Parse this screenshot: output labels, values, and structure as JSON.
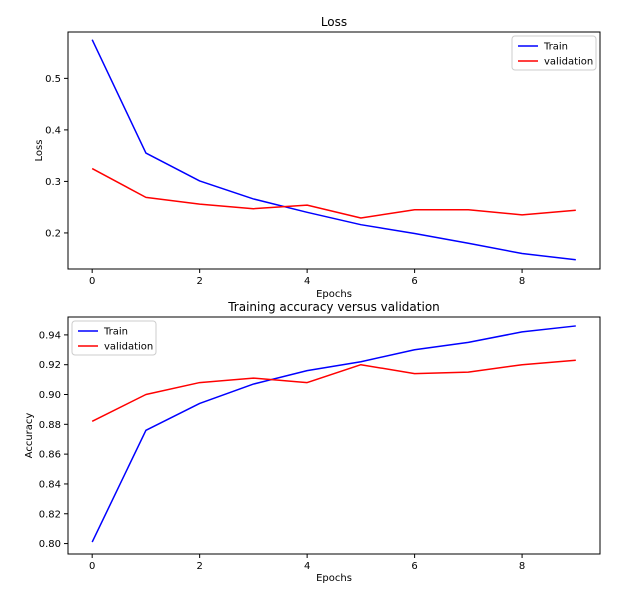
{
  "chart_data": [
    {
      "type": "line",
      "title": "Loss",
      "xlabel": "Epochs",
      "ylabel": "Loss",
      "xlim": [
        -0.45,
        9.45
      ],
      "ylim": [
        0.13,
        0.59
      ],
      "xticks": [
        0,
        2,
        4,
        6,
        8
      ],
      "xtick_labels": [
        "0",
        "2",
        "4",
        "6",
        "8"
      ],
      "yticks": [
        0.2,
        0.3,
        0.4,
        0.5
      ],
      "ytick_labels": [
        "0.2",
        "0.3",
        "0.4",
        "0.5"
      ],
      "legend_position": "top-right",
      "x": [
        0,
        1,
        2,
        3,
        4,
        5,
        6,
        7,
        8,
        9
      ],
      "series": [
        {
          "name": "Train",
          "color": "#0000ff",
          "values": [
            0.575,
            0.355,
            0.301,
            0.266,
            0.24,
            0.216,
            0.199,
            0.18,
            0.16,
            0.148
          ]
        },
        {
          "name": "validation",
          "color": "#ff0000",
          "values": [
            0.325,
            0.269,
            0.256,
            0.247,
            0.254,
            0.229,
            0.245,
            0.245,
            0.235,
            0.244
          ]
        }
      ]
    },
    {
      "type": "line",
      "title": "Training accuracy versus validation",
      "xlabel": "Epochs",
      "ylabel": "Accuracy",
      "xlim": [
        -0.45,
        9.45
      ],
      "ylim": [
        0.793,
        0.952
      ],
      "xticks": [
        0,
        2,
        4,
        6,
        8
      ],
      "xtick_labels": [
        "0",
        "2",
        "4",
        "6",
        "8"
      ],
      "yticks": [
        0.8,
        0.82,
        0.84,
        0.86,
        0.88,
        0.9,
        0.92,
        0.94
      ],
      "ytick_labels": [
        "0.80",
        "0.82",
        "0.84",
        "0.86",
        "0.88",
        "0.90",
        "0.92",
        "0.94"
      ],
      "legend_position": "top-left",
      "x": [
        0,
        1,
        2,
        3,
        4,
        5,
        6,
        7,
        8,
        9
      ],
      "series": [
        {
          "name": "Train",
          "color": "#0000ff",
          "values": [
            0.801,
            0.876,
            0.894,
            0.907,
            0.916,
            0.922,
            0.93,
            0.935,
            0.942,
            0.946
          ]
        },
        {
          "name": "validation",
          "color": "#ff0000",
          "values": [
            0.882,
            0.9,
            0.908,
            0.911,
            0.908,
            0.92,
            0.914,
            0.915,
            0.92,
            0.923
          ]
        }
      ]
    }
  ]
}
